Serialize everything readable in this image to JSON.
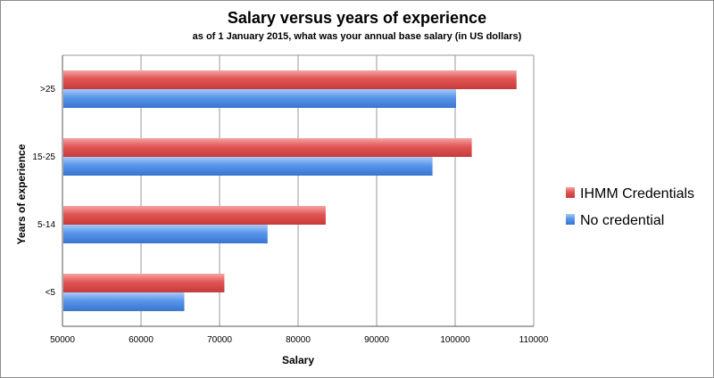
{
  "colors": {
    "ihmm": "#e04c4c",
    "no_credential": "#4f8ee8"
  },
  "chart_data": {
    "type": "bar",
    "orientation": "horizontal",
    "title": "Salary versus years of experience",
    "subtitle": "as of 1 January 2015, what was your annual base salary (in US dollars)",
    "xlabel": "Salary",
    "ylabel": "Years of experience",
    "categories": [
      "<5",
      "5-14",
      "15-25",
      ">25"
    ],
    "series": [
      {
        "name": "IHMM Credentials",
        "values": [
          70500,
          83400,
          102000,
          107700
        ]
      },
      {
        "name": "No credential",
        "values": [
          65400,
          76000,
          97000,
          100000
        ]
      }
    ],
    "xlim": [
      50000,
      110000
    ],
    "xticks": [
      50000,
      60000,
      70000,
      80000,
      90000,
      100000,
      110000
    ],
    "grid": true,
    "legend": "right"
  }
}
